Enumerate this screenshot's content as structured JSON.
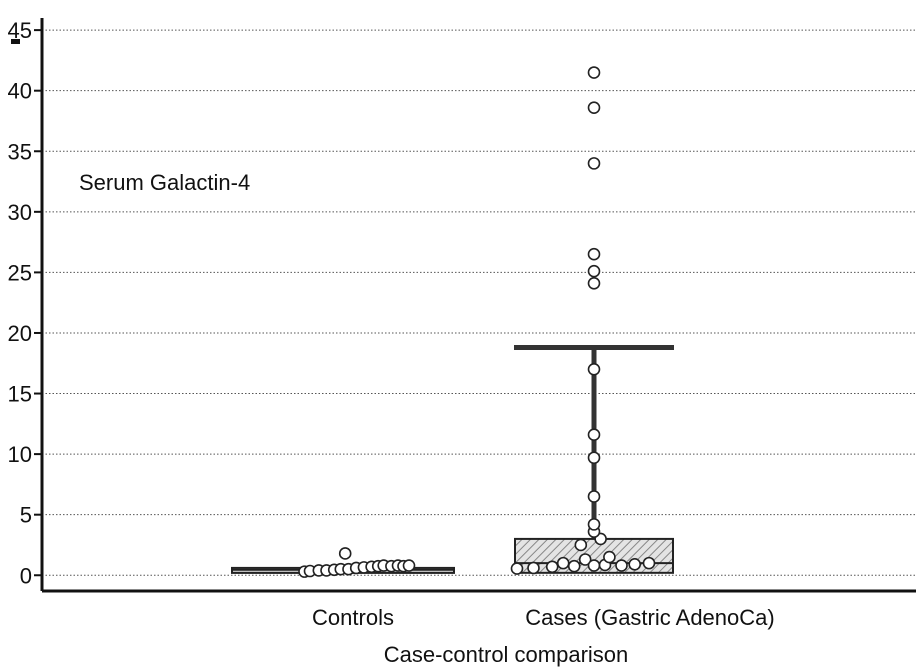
{
  "chart_data": {
    "type": "box",
    "xlabel": "Case-control comparison",
    "ylabel": "",
    "annotation": "Serum Galactin-4",
    "ylim": [
      -1.3,
      46
    ],
    "yticks": [
      0,
      5,
      10,
      15,
      20,
      25,
      30,
      35,
      40,
      45
    ],
    "grid": "horizontal dotted",
    "categories": [
      "Controls",
      "Cases (Gastric AdenoCa)"
    ],
    "boxes": [
      {
        "category": "Controls",
        "q1": 0.2,
        "median": 0.45,
        "q3": 0.6,
        "whisker_low": 0.2,
        "whisker_high": 0.6,
        "points": [
          {
            "x": -0.35,
            "y": 0.3
          },
          {
            "x": -0.3,
            "y": 0.35
          },
          {
            "x": -0.22,
            "y": 0.4
          },
          {
            "x": -0.15,
            "y": 0.4
          },
          {
            "x": -0.08,
            "y": 0.45
          },
          {
            "x": -0.02,
            "y": 0.5
          },
          {
            "x": 0.05,
            "y": 0.5
          },
          {
            "x": 0.12,
            "y": 0.6
          },
          {
            "x": 0.19,
            "y": 0.65
          },
          {
            "x": 0.26,
            "y": 0.7
          },
          {
            "x": 0.32,
            "y": 0.75
          },
          {
            "x": 0.37,
            "y": 0.8
          },
          {
            "x": 0.44,
            "y": 0.75
          },
          {
            "x": 0.5,
            "y": 0.8
          },
          {
            "x": 0.55,
            "y": 0.75
          },
          {
            "x": 0.6,
            "y": 0.8
          },
          {
            "x": 0.02,
            "y": 1.8
          }
        ]
      },
      {
        "category": "Cases (Gastric AdenoCa)",
        "q1": 0.2,
        "median": 1.0,
        "q3": 3.0,
        "whisker_low": 0.2,
        "whisker_high": 18.8,
        "points": [
          {
            "x": -0.7,
            "y": 0.55
          },
          {
            "x": -0.55,
            "y": 0.6
          },
          {
            "x": -0.38,
            "y": 0.7
          },
          {
            "x": -0.28,
            "y": 1.0
          },
          {
            "x": -0.18,
            "y": 0.75
          },
          {
            "x": -0.08,
            "y": 1.3
          },
          {
            "x": 0.0,
            "y": 0.8
          },
          {
            "x": 0.1,
            "y": 0.85
          },
          {
            "x": 0.14,
            "y": 1.5
          },
          {
            "x": 0.25,
            "y": 0.8
          },
          {
            "x": 0.37,
            "y": 0.9
          },
          {
            "x": 0.5,
            "y": 1.0
          },
          {
            "x": -0.12,
            "y": 2.5
          },
          {
            "x": 0.06,
            "y": 3.0
          },
          {
            "x": 0.0,
            "y": 3.6
          },
          {
            "x": 0.0,
            "y": 4.2
          },
          {
            "x": 0.0,
            "y": 6.5
          },
          {
            "x": 0.0,
            "y": 9.7
          },
          {
            "x": 0.0,
            "y": 11.6
          },
          {
            "x": 0.0,
            "y": 17.0
          },
          {
            "x": 0.0,
            "y": 24.1
          },
          {
            "x": 0.0,
            "y": 25.1
          },
          {
            "x": 0.0,
            "y": 26.5
          },
          {
            "x": 0.0,
            "y": 34.0
          },
          {
            "x": 0.0,
            "y": 38.6
          },
          {
            "x": 0.0,
            "y": 41.5
          }
        ]
      }
    ]
  }
}
